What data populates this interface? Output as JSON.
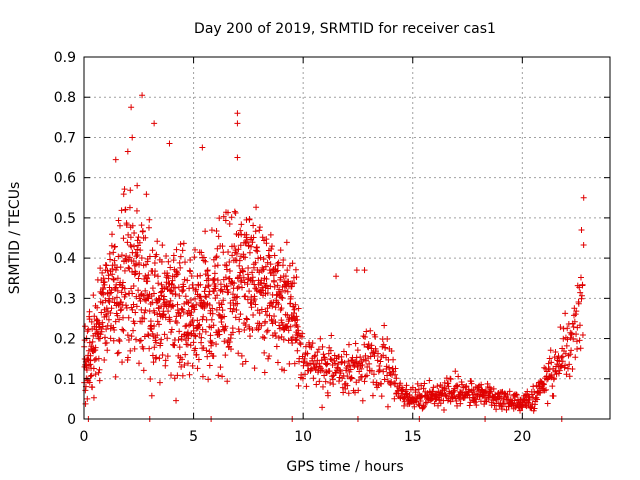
{
  "chart_data": {
    "type": "scatter",
    "title": "Day 200 of 2019, SRMTID for receiver cas1",
    "xlabel": "GPS time / hours",
    "ylabel": "SRMTID / TECUs",
    "xlim": [
      0,
      24
    ],
    "ylim": [
      0,
      0.9
    ],
    "xticks": [
      0,
      5,
      10,
      15,
      20
    ],
    "yticks": [
      0,
      0.1,
      0.2,
      0.3,
      0.4,
      0.5,
      0.6,
      0.7,
      0.8,
      0.9
    ],
    "grid": true,
    "series": [
      {
        "name": "SRMTID",
        "marker": "+",
        "color": "#e00000",
        "envelope_hours": [
          0,
          0.5,
          1,
          1.5,
          2,
          2.5,
          3,
          3.5,
          4,
          4.5,
          5,
          5.5,
          6,
          6.5,
          7,
          7.5,
          8,
          8.5,
          9,
          9.5,
          10,
          11,
          12,
          13,
          14,
          14.5,
          15,
          16,
          17,
          18,
          19,
          20,
          20.5,
          21,
          21.5,
          22,
          22.5,
          22.8
        ],
        "envelope_mean": [
          0.12,
          0.22,
          0.28,
          0.32,
          0.4,
          0.36,
          0.3,
          0.28,
          0.3,
          0.27,
          0.26,
          0.28,
          0.3,
          0.32,
          0.34,
          0.36,
          0.35,
          0.32,
          0.3,
          0.28,
          0.14,
          0.13,
          0.12,
          0.14,
          0.13,
          0.06,
          0.05,
          0.06,
          0.07,
          0.07,
          0.05,
          0.04,
          0.05,
          0.09,
          0.13,
          0.17,
          0.24,
          0.35
        ],
        "envelope_spread": [
          0.06,
          0.12,
          0.14,
          0.16,
          0.18,
          0.17,
          0.16,
          0.15,
          0.15,
          0.15,
          0.15,
          0.15,
          0.16,
          0.16,
          0.17,
          0.16,
          0.15,
          0.14,
          0.13,
          0.12,
          0.06,
          0.06,
          0.06,
          0.08,
          0.07,
          0.03,
          0.025,
          0.03,
          0.03,
          0.03,
          0.025,
          0.02,
          0.025,
          0.04,
          0.05,
          0.07,
          0.09,
          0.12
        ],
        "highlighted_points": [
          {
            "x": 2.65,
            "y": 0.805
          },
          {
            "x": 2.15,
            "y": 0.775
          },
          {
            "x": 3.2,
            "y": 0.735
          },
          {
            "x": 7.0,
            "y": 0.76
          },
          {
            "x": 7.0,
            "y": 0.735
          },
          {
            "x": 2.2,
            "y": 0.7
          },
          {
            "x": 3.9,
            "y": 0.685
          },
          {
            "x": 5.4,
            "y": 0.675
          },
          {
            "x": 7.0,
            "y": 0.65
          },
          {
            "x": 2.0,
            "y": 0.665
          },
          {
            "x": 1.45,
            "y": 0.645
          },
          {
            "x": 12.45,
            "y": 0.37
          },
          {
            "x": 12.8,
            "y": 0.37
          },
          {
            "x": 11.5,
            "y": 0.355
          },
          {
            "x": 22.8,
            "y": 0.55
          },
          {
            "x": 22.7,
            "y": 0.47
          },
          {
            "x": 0.15,
            "y": 0.05
          }
        ],
        "points_on_axis_hours": [
          0.2,
          3.0,
          5.8,
          9.5,
          12.5,
          15.3,
          18.3,
          21.8
        ]
      }
    ]
  }
}
